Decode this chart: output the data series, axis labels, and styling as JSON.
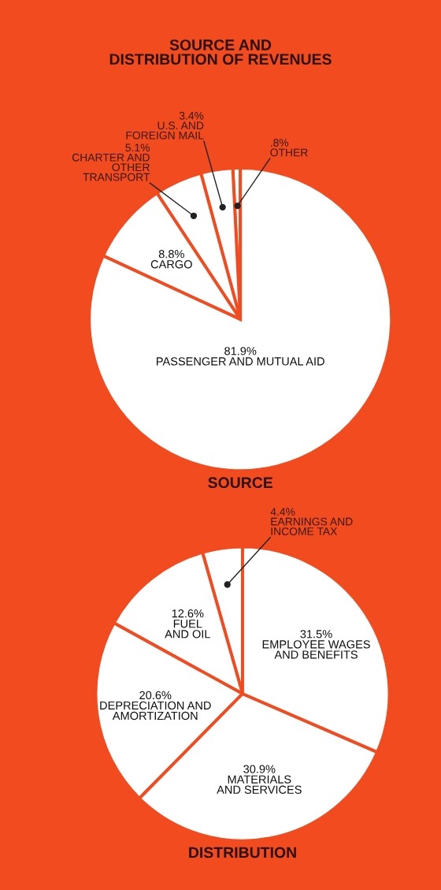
{
  "chart_data": [
    {
      "type": "pie",
      "title": "SOURCE AND\nDISTRIBUTION OF REVENUES",
      "xlabel": "SOURCE",
      "categories": [
        "OTHER",
        "U.S. AND\nFOREIGN MAIL",
        "CHARTER AND\nOTHER\nTRANSPORT",
        "CARGO",
        "PASSENGER AND MUTUAL AID"
      ],
      "values": [
        0.8,
        3.4,
        5.1,
        8.8,
        81.9
      ],
      "value_labels": [
        ".8%",
        "3.4%",
        "5.1%",
        "8.8%",
        "81.9%"
      ],
      "colors": [
        "#ffffff",
        "#ffffff",
        "#ffffff",
        "#ffffff",
        "#ffffff"
      ]
    },
    {
      "type": "pie",
      "xlabel": "DISTRIBUTION",
      "categories": [
        "EARNINGS AND\nINCOME TAX",
        "FUEL\nAND OIL",
        "DEPRECIATION AND\nAMORTIZATION",
        "MATERIALS\nAND SERVICES",
        "EMPLOYEE WAGES\nAND BENEFITS"
      ],
      "values": [
        4.4,
        12.6,
        20.6,
        30.9,
        31.5
      ],
      "value_labels": [
        "4.4%",
        "12.6%",
        "20.6%",
        "30.9%",
        "31.5%"
      ],
      "colors": [
        "#ffffff",
        "#ffffff",
        "#ffffff",
        "#ffffff",
        "#ffffff"
      ]
    }
  ]
}
